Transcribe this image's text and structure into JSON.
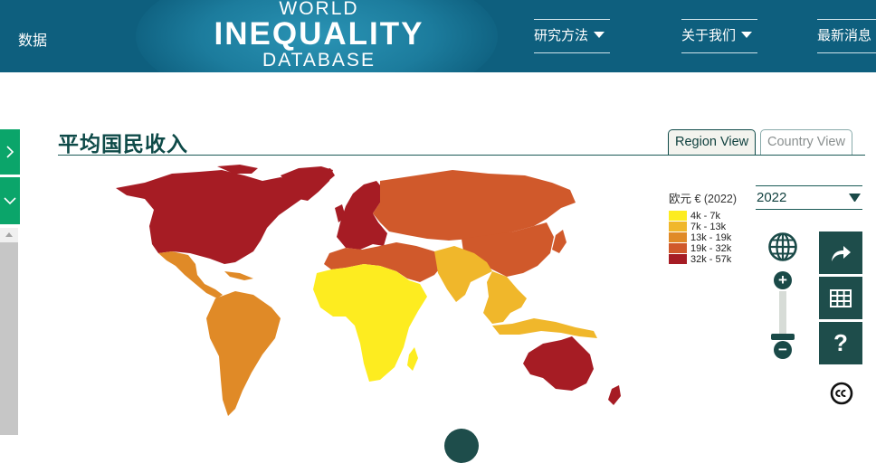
{
  "header": {
    "nav_data": "数据",
    "logo_line1": "WORLD",
    "logo_line2": "INEQUALITY",
    "logo_line3": "DATABASE",
    "menu_methods": "研究方法",
    "menu_about": "关于我们",
    "menu_news": "最新消息"
  },
  "page": {
    "title": "平均国民收入",
    "tab_region": "Region View",
    "tab_country": "Country View"
  },
  "legend": {
    "title": "欧元 € (2022)",
    "items": [
      {
        "label": "4k - 7k",
        "color": "#fdec20"
      },
      {
        "label": "7k - 13k",
        "color": "#f0b72b"
      },
      {
        "label": "13k - 19k",
        "color": "#e08a27"
      },
      {
        "label": "19k - 32k",
        "color": "#d0592b"
      },
      {
        "label": "32k - 57k",
        "color": "#a61c24"
      }
    ]
  },
  "controls": {
    "year_selected": "2022",
    "zoom_in_symbol": "+",
    "zoom_out_symbol": "−",
    "help_symbol": "?",
    "icons": [
      "globe-icon",
      "share-icon",
      "table-icon",
      "help-icon",
      "cc-icon"
    ]
  },
  "colors": {
    "header_bg": "#0e5f7e",
    "accent_green": "#0ba56a",
    "dark_teal": "#1e4d4b"
  }
}
